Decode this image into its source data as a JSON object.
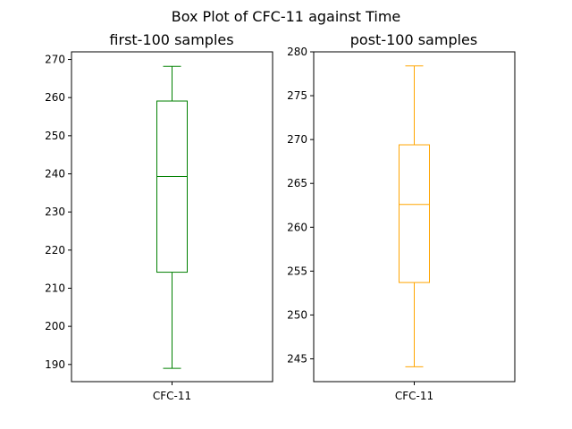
{
  "figure": {
    "suptitle": "Box Plot of CFC-11 against Time"
  },
  "chart_data": [
    {
      "type": "box",
      "title": "first-100 samples",
      "categories": [
        "CFC-11"
      ],
      "color": "#008000",
      "stats": {
        "whisker_low": 189.0,
        "q1": 214.2,
        "median": 239.3,
        "q3": 259.1,
        "whisker_high": 268.2
      },
      "ylim": [
        185.5,
        272.0
      ],
      "yticks": [
        190,
        200,
        210,
        220,
        230,
        240,
        250,
        260,
        270
      ],
      "grid": false
    },
    {
      "type": "box",
      "title": "post-100 samples",
      "categories": [
        "CFC-11"
      ],
      "color": "#FFA500",
      "stats": {
        "whisker_low": 244.1,
        "q1": 253.7,
        "median": 262.6,
        "q3": 269.4,
        "whisker_high": 278.4
      },
      "ylim": [
        242.4,
        280.0
      ],
      "yticks": [
        245,
        250,
        255,
        260,
        265,
        270,
        275,
        280
      ],
      "grid": false
    }
  ]
}
